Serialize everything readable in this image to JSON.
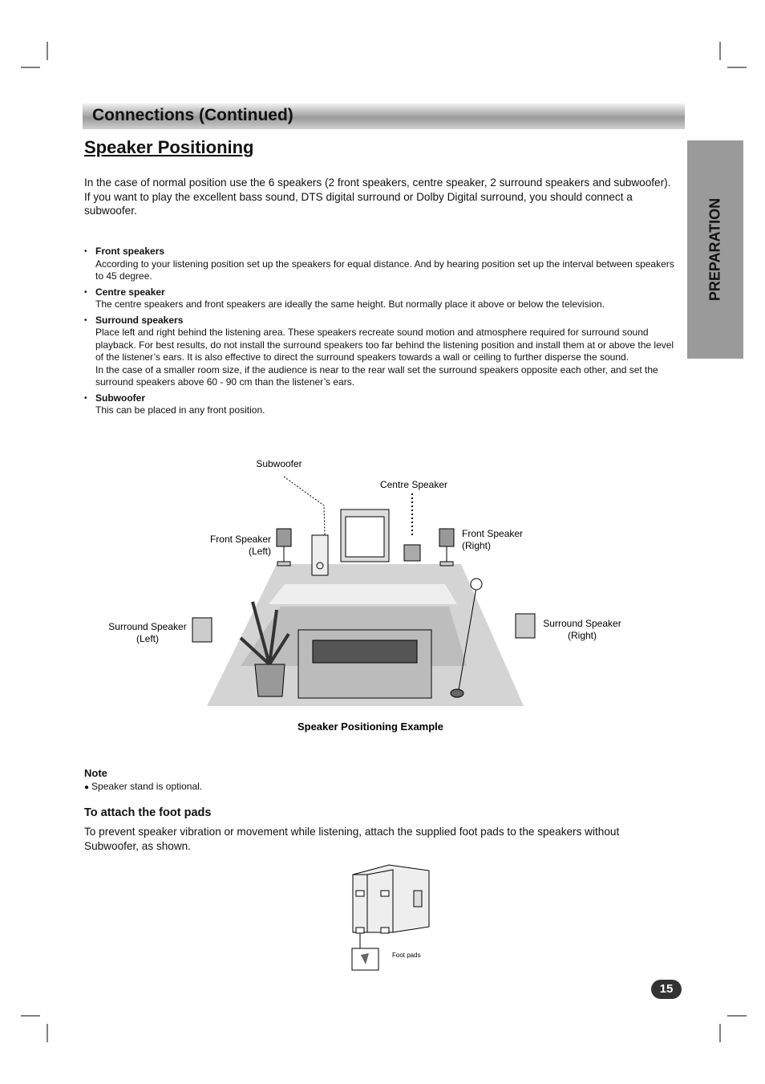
{
  "header": {
    "title": "Connections (Continued)"
  },
  "side_tab": "PREPARATION",
  "section_title": "Speaker Positioning",
  "intro": [
    "In the case of normal position use the 6 speakers (2 front speakers, centre speaker, 2 surround speakers and subwoofer).",
    "If you want to play the excellent bass sound, DTS digital surround or Dolby Digital surround, you should connect a subwoofer."
  ],
  "bullets": [
    {
      "title": "Front speakers",
      "text": [
        "According to your listening position set up the speakers for equal distance. And by hearing position set up the interval between speakers to 45 degree."
      ]
    },
    {
      "title": "Centre speaker",
      "text": [
        "The centre speakers and front speakers are ideally the same height. But normally place it above or below the television."
      ]
    },
    {
      "title": "Surround speakers",
      "text": [
        "Place left and right behind the listening area. These speakers recreate sound motion and atmosphere required for surround sound playback. For best results, do not install the surround speakers too far behind the listening position and install them at or above the level of the listener’s ears. It is also effective to direct the surround speakers towards a wall or ceiling to further disperse the sound.",
        "In the case of a smaller room size, if the audience is near to the rear wall set the surround speakers opposite each other, and set the surround speakers above 60 - 90 cm than the listener’s ears."
      ]
    },
    {
      "title": "Subwoofer",
      "text": [
        "This can be placed in any front position."
      ]
    }
  ],
  "diagram": {
    "labels": {
      "subwoofer": "Subwoofer",
      "centre": "Centre Speaker",
      "front_left": [
        "Front Speaker",
        "(Left)"
      ],
      "front_right": [
        "Front Speaker",
        "(Right)"
      ],
      "surround_left": [
        "Surround Speaker",
        "(Left)"
      ],
      "surround_right": [
        "Surround Speaker",
        "(Right)"
      ]
    },
    "caption": "Speaker Positioning Example"
  },
  "note": {
    "title": "Note",
    "items": [
      "Speaker stand is optional."
    ]
  },
  "foot_pads": {
    "title": "To attach the foot pads",
    "text": "To prevent speaker vibration or movement while listening, attach the supplied foot pads to the speakers without Subwoofer, as shown.",
    "figure_label": "Foot pads"
  },
  "page_number": "15"
}
